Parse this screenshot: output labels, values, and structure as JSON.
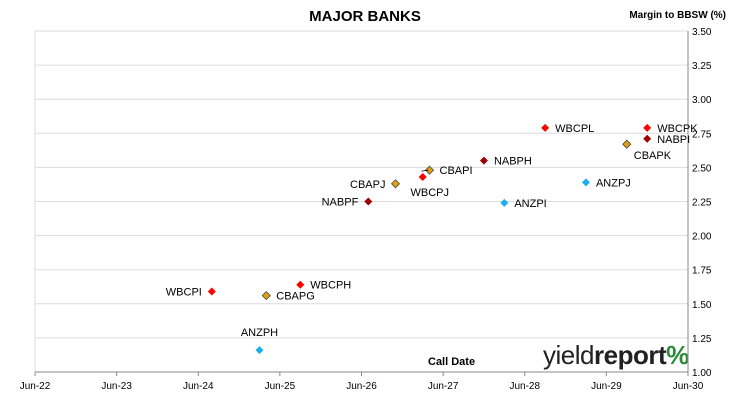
{
  "title": "MAJOR BANKS",
  "ylabel": "Margin to BBSW (%)",
  "xlabel": "Call Date",
  "logo": {
    "part1": "yield",
    "part2": "report",
    "symbol": "%"
  },
  "colors": {
    "WBC": "#ff0000",
    "CBA": "#e0a010",
    "NAB": "#a00000",
    "ANZ": "#1ab0f0",
    "grid": "#dcdcdc"
  },
  "chart_data": {
    "type": "scatter",
    "xlabel": "Call Date",
    "ylabel": "Margin to BBSW (%)",
    "ylim": [
      1.0,
      3.5
    ],
    "yticks": [
      "1.00",
      "1.25",
      "1.50",
      "1.75",
      "2.00",
      "2.25",
      "2.50",
      "2.75",
      "3.00",
      "3.25",
      "3.50"
    ],
    "xticks": [
      "Jun-22",
      "Jun-23",
      "Jun-24",
      "Jun-25",
      "Jun-26",
      "Jun-27",
      "Jun-28",
      "Jun-29",
      "Jun-30"
    ],
    "xlim": [
      "Jun-22",
      "Jun-30"
    ],
    "grid": true,
    "points": [
      {
        "label": "WBCPI",
        "bank": "WBC",
        "x": "Aug-24",
        "y": 1.59,
        "label_side": "left",
        "label_dy": 0
      },
      {
        "label": "WBCPH",
        "bank": "WBC",
        "x": "Sep-25",
        "y": 1.64,
        "label_side": "right",
        "label_dy": 0
      },
      {
        "label": "CBAPG",
        "bank": "CBA",
        "x": "Apr-25",
        "y": 1.56,
        "label_side": "right",
        "label_dy": 0
      },
      {
        "label": "ANZPH",
        "bank": "ANZ",
        "x": "Mar-25",
        "y": 1.16,
        "label_side": "above",
        "label_dy": 0
      },
      {
        "label": "NABPF",
        "bank": "NAB",
        "x": "Jul-26",
        "y": 2.25,
        "label_side": "left",
        "label_dy": 0
      },
      {
        "label": "CBAPJ",
        "bank": "CBA",
        "x": "Nov-26",
        "y": 2.38,
        "label_side": "left",
        "label_dy": 0
      },
      {
        "label": "WBCPJ",
        "bank": "WBC",
        "x": "Mar-27",
        "y": 2.43,
        "label_side": "below",
        "label_dy": 0
      },
      {
        "label": "CBAPI",
        "bank": "CBA",
        "x": "Apr-27",
        "y": 2.48,
        "label_side": "right",
        "label_dy": 0
      },
      {
        "label": "NABPH",
        "bank": "NAB",
        "x": "Dec-27",
        "y": 2.55,
        "label_side": "right",
        "label_dy": 0
      },
      {
        "label": "ANZPI",
        "bank": "ANZ",
        "x": "Mar-28",
        "y": 2.24,
        "label_side": "right",
        "label_dy": 0
      },
      {
        "label": "WBCPL",
        "bank": "WBC",
        "x": "Sep-28",
        "y": 2.79,
        "label_side": "right",
        "label_dy": 0
      },
      {
        "label": "ANZPJ",
        "bank": "ANZ",
        "x": "Mar-29",
        "y": 2.39,
        "label_side": "right",
        "label_dy": 0
      },
      {
        "label": "CBAPK",
        "bank": "CBA",
        "x": "Sep-29",
        "y": 2.67,
        "label_side": "below-right",
        "label_dy": 0
      },
      {
        "label": "WBCPK",
        "bank": "WBC",
        "x": "Dec-29",
        "y": 2.79,
        "label_side": "right",
        "label_dy": 0
      },
      {
        "label": "NABPI",
        "bank": "NAB",
        "x": "Dec-29",
        "y": 2.71,
        "label_side": "right",
        "label_dy": 0
      }
    ]
  }
}
